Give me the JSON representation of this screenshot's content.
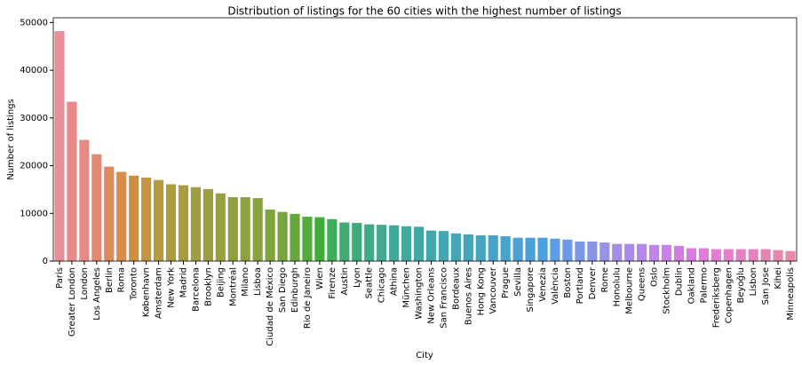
{
  "chart_data": {
    "type": "bar",
    "title": "Distribution of listings for the 60 cities with the highest number of listings",
    "xlabel": "City",
    "ylabel": "Number of listings",
    "categories": [
      "Paris",
      "Greater London",
      "London",
      "Los Angeles",
      "Berlin",
      "Roma",
      "Toronto",
      "København",
      "Amsterdam",
      "New York",
      "Madrid",
      "Barcelona",
      "Brooklyn",
      "Beijing",
      "Montréal",
      "Milano",
      "Lisboa",
      "Ciudad de México",
      "San Diego",
      "Edinburgh",
      "Rio de Janeiro",
      "Wien",
      "Firenze",
      "Austin",
      "Lyon",
      "Seattle",
      "Chicago",
      "Athina",
      "München",
      "Washington",
      "New Orleans",
      "San Francisco",
      "Bordeaux",
      "Buenos Aires",
      "Hong Kong",
      "Vancouver",
      "Prague",
      "Sevilla",
      "Singapore",
      "Venezia",
      "València",
      "Boston",
      "Portland",
      "Denver",
      "Rome",
      "Honolulu",
      "Melbourne",
      "Queens",
      "Oslo",
      "Stockholm",
      "Dublin",
      "Oakland",
      "Palermo",
      "Frederiksberg",
      "Copenhagen",
      "Beyoğlu",
      "Lisbon",
      "San Jose",
      "Kihei",
      "Minneapolis"
    ],
    "values": [
      48200,
      33400,
      25400,
      22400,
      19800,
      18700,
      17900,
      17500,
      17000,
      16100,
      15900,
      15500,
      15100,
      14200,
      13400,
      13400,
      13200,
      10800,
      10300,
      9900,
      9300,
      9200,
      8800,
      8100,
      8000,
      7700,
      7600,
      7500,
      7300,
      7200,
      6400,
      6300,
      5800,
      5600,
      5400,
      5400,
      5200,
      4900,
      4900,
      4900,
      4700,
      4500,
      4100,
      4100,
      3900,
      3600,
      3600,
      3600,
      3400,
      3400,
      3200,
      2700,
      2700,
      2500,
      2500,
      2500,
      2500,
      2500,
      2300,
      2100
    ],
    "colors": [
      "#e8909a",
      "#e88a8a",
      "#e58a84",
      "#e2886e",
      "#df8a5a",
      "#d98c4a",
      "#cc9040",
      "#c49440",
      "#b89a3e",
      "#ad9c3e",
      "#a89c3e",
      "#a29d3e",
      "#9d9e3d",
      "#989f3d",
      "#939f3d",
      "#8ea13d",
      "#88a23d",
      "#7fa43c",
      "#74a63c",
      "#66a83c",
      "#55ab3c",
      "#3fad3c",
      "#3dad5a",
      "#3dac6e",
      "#3eab7b",
      "#3faa86",
      "#40a98f",
      "#41a997",
      "#42a89e",
      "#42a8a4",
      "#43a7aa",
      "#44a6b0",
      "#45a6b5",
      "#46a5ba",
      "#47a4c0",
      "#48a3c6",
      "#49a2cc",
      "#4aa1d2",
      "#4ba0d9",
      "#4d9fe0",
      "#5a9de6",
      "#6a9ae8",
      "#7b97e9",
      "#8994e9",
      "#9691e9",
      "#a28ee9",
      "#ac8ae9",
      "#b687e9",
      "#c083e9",
      "#ca80e8",
      "#d47ce6",
      "#dd7ae2",
      "#e27add",
      "#e57cd6",
      "#e77ece",
      "#e880c6",
      "#e882be",
      "#e884b5",
      "#e886ad",
      "#e888a4"
    ],
    "ylim": [
      0,
      51000
    ],
    "yticks": [
      0,
      10000,
      20000,
      30000,
      40000,
      50000
    ],
    "grid": false
  }
}
